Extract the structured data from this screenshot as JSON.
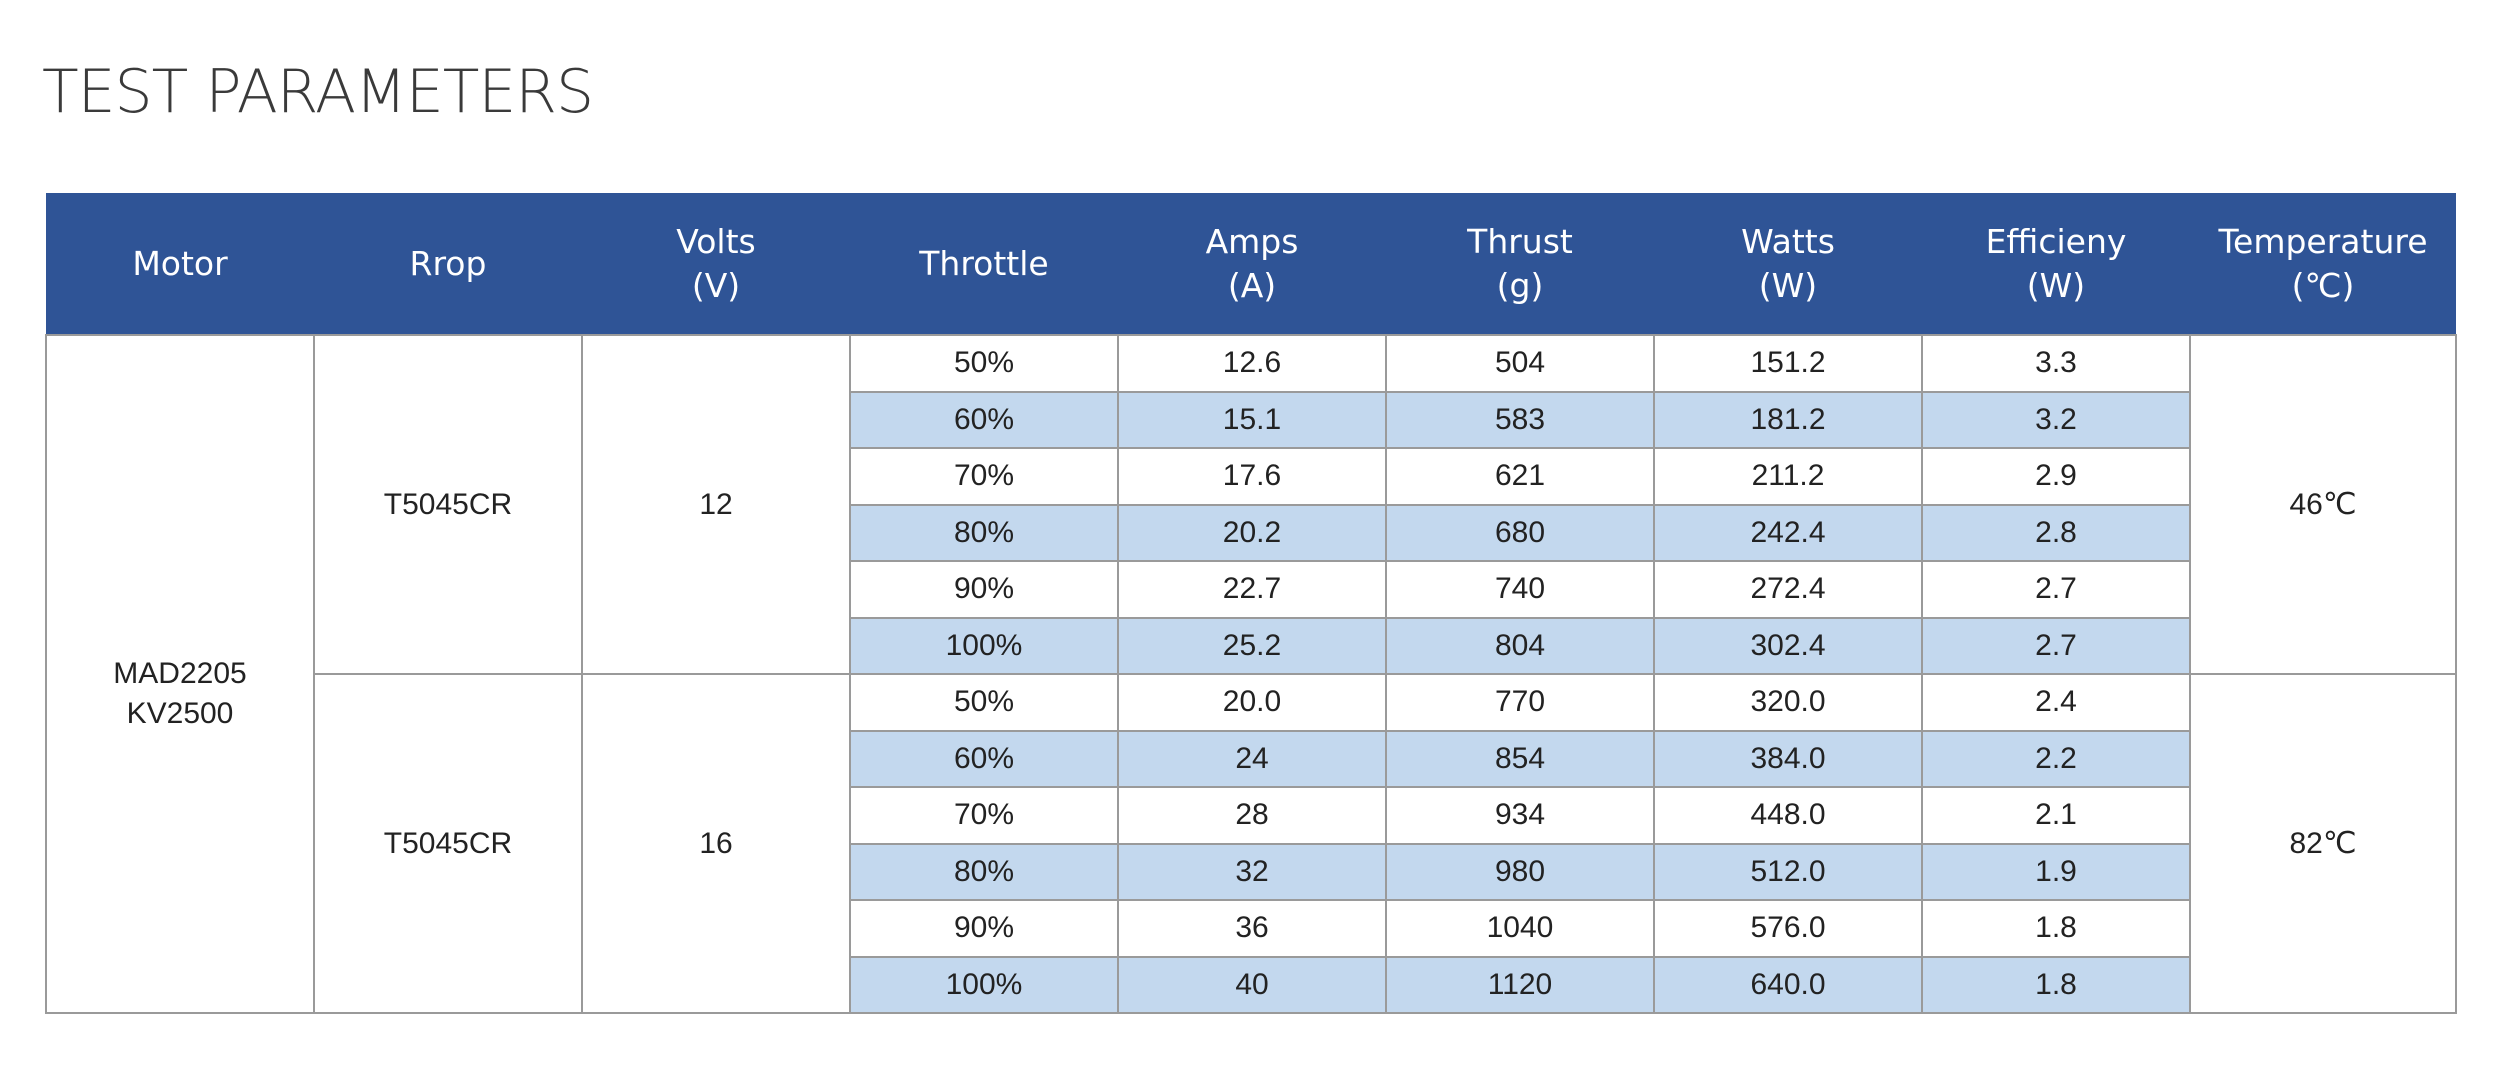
{
  "title": "TEST PARAMETERS",
  "headers": [
    [
      "Motor"
    ],
    [
      "Rrop"
    ],
    [
      "Volts",
      "(V)"
    ],
    [
      "Throttle"
    ],
    [
      "Amps",
      "(A)"
    ],
    [
      "Thrust",
      "(g)"
    ],
    [
      "Watts",
      "(W)"
    ],
    [
      "Efficieny",
      "(W)"
    ],
    [
      "Temperature",
      "(℃)"
    ]
  ],
  "motor": [
    "MAD2205",
    "KV2500"
  ],
  "groups": [
    {
      "prop": "T5045CR",
      "volts": "12",
      "temperature": "46℃",
      "rows": [
        {
          "throttle": "50%",
          "amps": "12.6",
          "thrust": "504",
          "watts": "151.2",
          "efficiency": "3.3"
        },
        {
          "throttle": "60%",
          "amps": "15.1",
          "thrust": "583",
          "watts": "181.2",
          "efficiency": "3.2"
        },
        {
          "throttle": "70%",
          "amps": "17.6",
          "thrust": "621",
          "watts": "211.2",
          "efficiency": "2.9"
        },
        {
          "throttle": "80%",
          "amps": "20.2",
          "thrust": "680",
          "watts": "242.4",
          "efficiency": "2.8"
        },
        {
          "throttle": "90%",
          "amps": "22.7",
          "thrust": "740",
          "watts": "272.4",
          "efficiency": "2.7"
        },
        {
          "throttle": "100%",
          "amps": "25.2",
          "thrust": "804",
          "watts": "302.4",
          "efficiency": "2.7"
        }
      ]
    },
    {
      "prop": "T5045CR",
      "volts": "16",
      "temperature": "82℃",
      "rows": [
        {
          "throttle": "50%",
          "amps": "20.0",
          "thrust": "770",
          "watts": "320.0",
          "efficiency": "2.4"
        },
        {
          "throttle": "60%",
          "amps": "24",
          "thrust": "854",
          "watts": "384.0",
          "efficiency": "2.2"
        },
        {
          "throttle": "70%",
          "amps": "28",
          "thrust": "934",
          "watts": "448.0",
          "efficiency": "2.1"
        },
        {
          "throttle": "80%",
          "amps": "32",
          "thrust": "980",
          "watts": "512.0",
          "efficiency": "1.9"
        },
        {
          "throttle": "90%",
          "amps": "36",
          "thrust": "1040",
          "watts": "576.0",
          "efficiency": "1.8"
        },
        {
          "throttle": "100%",
          "amps": "40",
          "thrust": "1120",
          "watts": "640.0",
          "efficiency": "1.8"
        }
      ]
    }
  ],
  "colors": {
    "header_bg": "#2f5496",
    "header_text": "#ffffff",
    "alt_row_bg": "#c3d8ee",
    "border": "#9a9a9a"
  }
}
